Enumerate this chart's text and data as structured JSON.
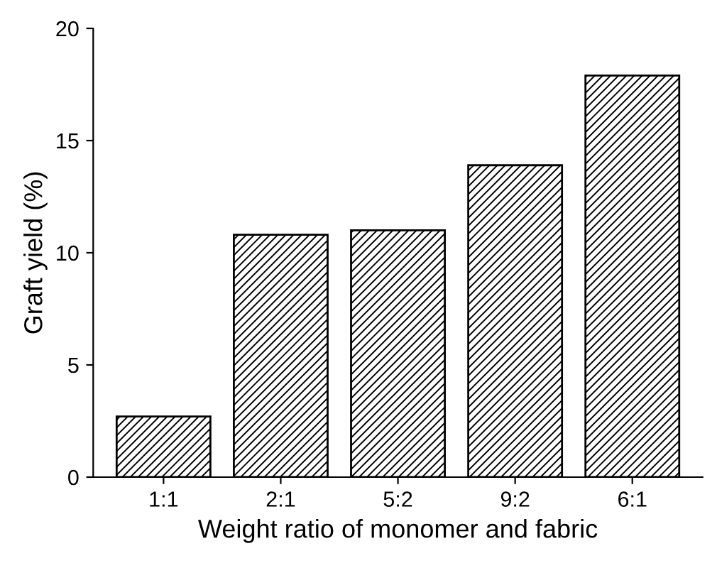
{
  "chart_data": {
    "type": "bar",
    "xlabel": "Weight ratio of monomer and fabric",
    "ylabel": "Graft yield (%)",
    "categories": [
      "1:1",
      "2:1",
      "5:2",
      "9:2",
      "6:1"
    ],
    "values": [
      2.7,
      10.8,
      11.0,
      13.9,
      17.9
    ],
    "color": "#000000",
    "ylim": [
      0,
      20
    ],
    "yticks": [
      0,
      5,
      10,
      15,
      20
    ],
    "grid": false,
    "legend": false
  }
}
